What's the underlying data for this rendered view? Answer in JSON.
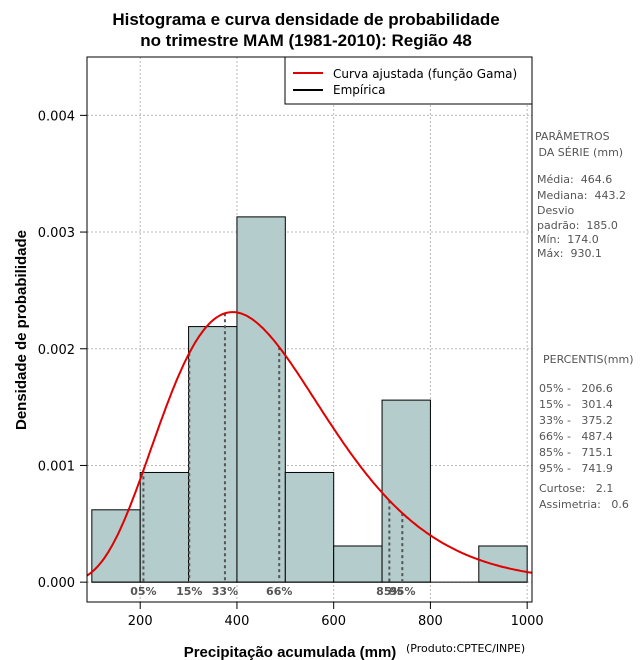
{
  "chart_data": {
    "type": "bar",
    "title_lines": [
      "Histograma e curva densidade de probabilidade",
      "no trimestre MAM (1981-2010): Região 48"
    ],
    "xlabel": "Precipitação acumulada (mm)",
    "ylabel": "Densidade de probabilidade",
    "credit": "(Produto:CPTEC/INPE)",
    "xlim": [
      90,
      1010
    ],
    "ylim": [
      -0.00017,
      0.0045
    ],
    "x_ticks": [
      200,
      400,
      600,
      800,
      1000
    ],
    "y_ticks": [
      0.0,
      0.001,
      0.002,
      0.003,
      0.004
    ],
    "y_tick_labels": [
      "0.000",
      "0.001",
      "0.002",
      "0.003",
      "0.004"
    ],
    "grid": true,
    "histogram": {
      "bins": [
        {
          "from": 100,
          "to": 200,
          "density": 0.00062
        },
        {
          "from": 200,
          "to": 300,
          "density": 0.00094
        },
        {
          "from": 300,
          "to": 400,
          "density": 0.00219
        },
        {
          "from": 400,
          "to": 500,
          "density": 0.00313
        },
        {
          "from": 500,
          "to": 600,
          "density": 0.00094
        },
        {
          "from": 600,
          "to": 700,
          "density": 0.00031
        },
        {
          "from": 700,
          "to": 800,
          "density": 0.00156
        },
        {
          "from": 800,
          "to": 900,
          "density": 0.0
        },
        {
          "from": 900,
          "to": 1000,
          "density": 0.00031
        }
      ],
      "fill": "#b4cccc"
    },
    "fitted_curve": {
      "name": "Curva ajustada (função Gama)",
      "color": "#e00000",
      "mean": 464.6,
      "sd": 185.0
    },
    "empirical": {
      "name": "Empírica",
      "color": "#000000"
    },
    "percentile_markers": [
      {
        "label": "05%",
        "x": 206.6
      },
      {
        "label": "15%",
        "x": 301.4
      },
      {
        "label": "33%",
        "x": 375.2
      },
      {
        "label": "66%",
        "x": 487.4
      },
      {
        "label": "85%",
        "x": 715.1
      },
      {
        "label": "95%",
        "x": 741.9
      }
    ]
  },
  "parameters": {
    "heading_lines": [
      "PARÂMETROS",
      " DA SÉRIE (mm)"
    ],
    "lines": [
      "Média:  464.6",
      "Mediana:  443.2",
      "Desvio",
      "padrão:  185.0",
      "Mín:  174.0",
      "Máx:  930.1"
    ]
  },
  "percentiles": {
    "heading": "PERCENTIS(mm)",
    "lines": [
      "05% -   206.6",
      "15% -   301.4",
      "33% -   375.2",
      "66% -   487.4",
      "85% -   715.1",
      "95% -   741.9"
    ],
    "extra_lines": [
      "Curtose:   2.1",
      "Assimetria:   0.6"
    ]
  }
}
